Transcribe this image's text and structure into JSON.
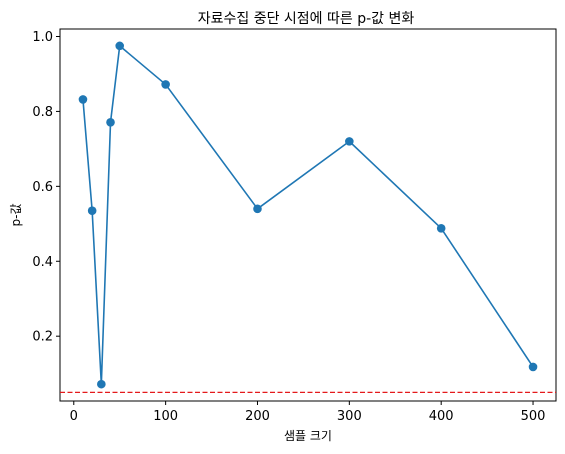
{
  "chart_data": {
    "type": "line",
    "title": "자료수집 중단 시점에 따른 p-값 변화",
    "xlabel": "샘플 크기",
    "ylabel": "p-값",
    "x": [
      10,
      20,
      30,
      40,
      50,
      100,
      200,
      300,
      400,
      500
    ],
    "series": [
      {
        "values": [
          0.832,
          0.535,
          0.072,
          0.771,
          0.975,
          0.872,
          0.54,
          0.72,
          0.488,
          0.118
        ],
        "color": "#1f77b4",
        "marker": "circle"
      }
    ],
    "reference_line": {
      "y": 0.05,
      "color": "#e41a1c",
      "style": "dashed"
    },
    "xlim": [
      -15,
      525
    ],
    "ylim": [
      0.027,
      1.02
    ],
    "xticks": [
      0,
      100,
      200,
      300,
      400,
      500
    ],
    "xtick_labels": [
      "0",
      "100",
      "200",
      "300",
      "400",
      "500"
    ],
    "yticks": [
      0.2,
      0.4,
      0.6,
      0.8,
      1.0
    ],
    "ytick_labels": [
      "0.2",
      "0.4",
      "0.6",
      "0.8",
      "1.0"
    ],
    "grid": false,
    "legend": "none"
  }
}
